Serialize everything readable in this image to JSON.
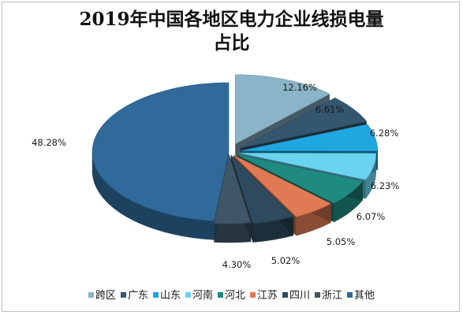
{
  "title": {
    "line1": "2019年中国各地区电力企业线损电量",
    "line2": "占比"
  },
  "chart_data": {
    "type": "pie",
    "title": "2019年中国各地区电力企业线损电量占比",
    "categories": [
      "跨区",
      "广东",
      "山东",
      "河南",
      "河北",
      "江苏",
      "四川",
      "浙江",
      "其他"
    ],
    "values": [
      12.16,
      6.61,
      6.28,
      6.23,
      6.07,
      5.05,
      5.02,
      4.3,
      48.28
    ],
    "labels": [
      "12.16%",
      "6.61%",
      "6.28%",
      "6.23%",
      "6.07%",
      "5.05%",
      "5.02%",
      "4.30%",
      "48.28%"
    ],
    "colors": [
      "#8ab4c8",
      "#34566f",
      "#1fa7e0",
      "#69d3f0",
      "#1f8a80",
      "#e07a54",
      "#2d4a5e",
      "#3e5666",
      "#2f6a9a"
    ],
    "legend_position": "bottom",
    "style": "3d-exploded"
  }
}
